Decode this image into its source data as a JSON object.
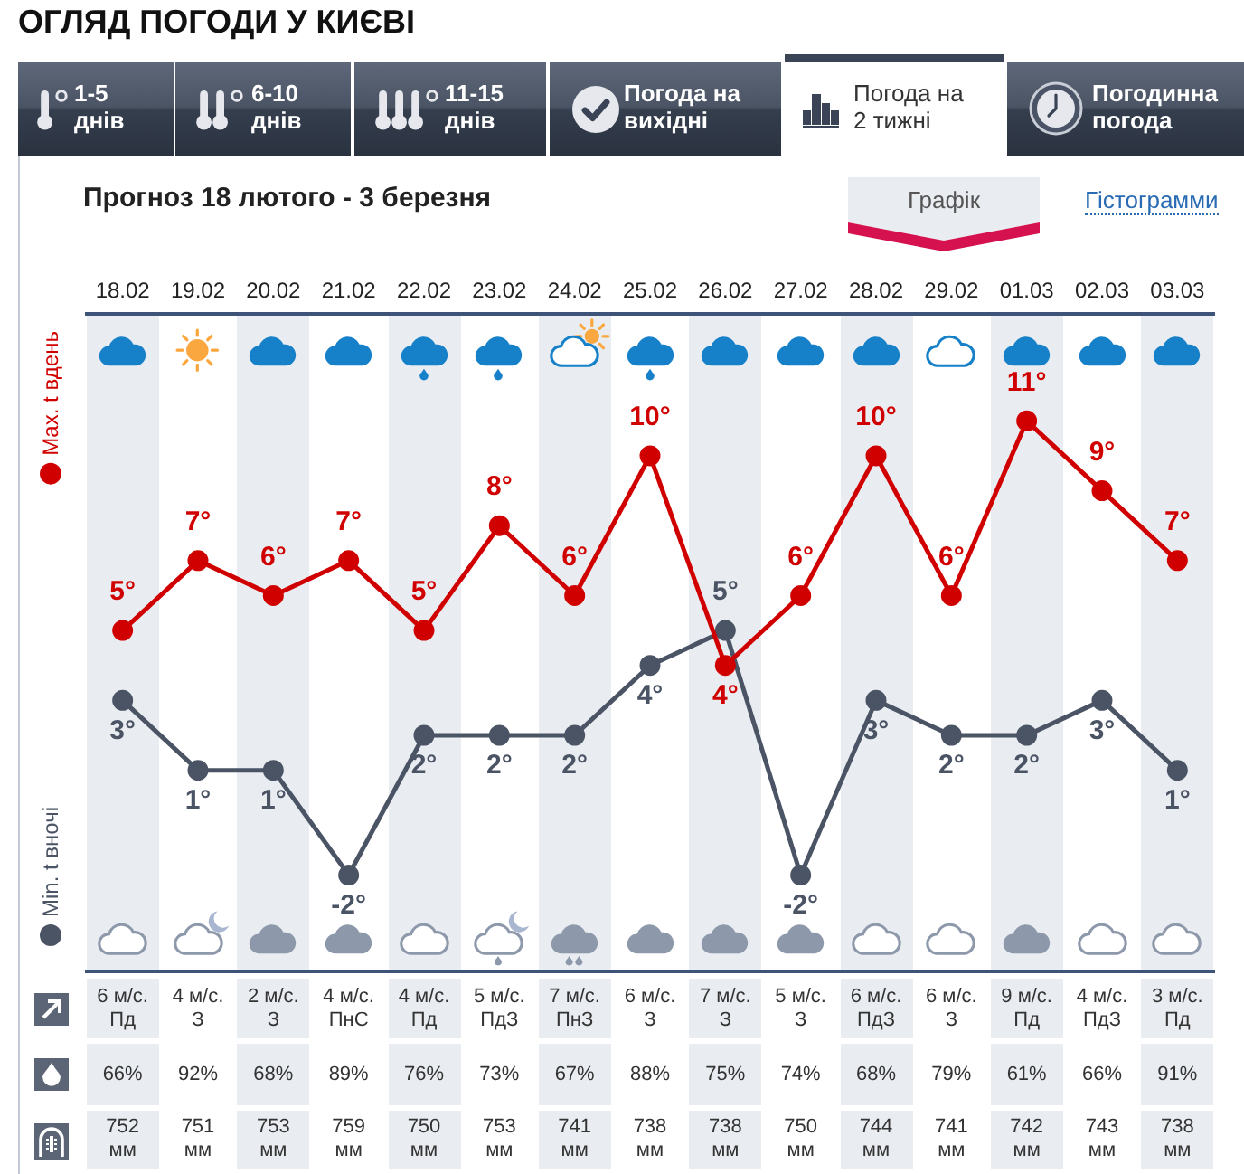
{
  "chart_data": {
    "type": "line",
    "title": "ОГЛЯД ПОГОДИ У КИЄВІ",
    "subtitle": "Прогноз 18 лютого - 3 березня",
    "categories": [
      "18.02",
      "19.02",
      "20.02",
      "21.02",
      "22.02",
      "23.02",
      "24.02",
      "25.02",
      "26.02",
      "27.02",
      "28.02",
      "29.02",
      "01.03",
      "02.03",
      "03.03"
    ],
    "series": [
      {
        "name": "Max. t вдень",
        "color": "#d10000",
        "values": [
          5,
          7,
          6,
          7,
          5,
          8,
          6,
          10,
          4,
          6,
          10,
          6,
          11,
          9,
          7
        ],
        "value_labels": [
          "5°",
          "7°",
          "6°",
          "7°",
          "5°",
          "8°",
          "6°",
          "10°",
          "4°",
          "6°",
          "10°",
          "6°",
          "11°",
          "9°",
          "7°"
        ]
      },
      {
        "name": "Min. t вночі",
        "color": "#4a5465",
        "values": [
          3,
          1,
          1,
          -2,
          2,
          2,
          2,
          4,
          5,
          -2,
          3,
          2,
          2,
          3,
          1
        ],
        "value_labels": [
          "3°",
          "1°",
          "1°",
          "-2°",
          "2°",
          "2°",
          "2°",
          "4°",
          "5°",
          "-2°",
          "3°",
          "2°",
          "2°",
          "3°",
          "1°"
        ]
      }
    ],
    "legend": "left",
    "tick_labels": "x",
    "marker": "circle",
    "line_style": "solid",
    "annotations": [
      "1-5\nднів",
      "6-10\nднів",
      "11-15\nднів",
      "Погода на\nвихідні",
      "Погода на\n2 тижні",
      "Погодинна\nпогода",
      "Графік",
      "Гістограмми",
      "6 м/с.\nПд",
      "4 м/с.\nЗ",
      "2 м/с.\nЗ",
      "4 м/с.\nПнС",
      "4 м/с.\nПд",
      "5 м/с.\nПдЗ",
      "7 м/с.\nПнЗ",
      "6 м/с.\nЗ",
      "7 м/с.\nЗ",
      "5 м/с.\nЗ",
      "6 м/с.\nПдЗ",
      "6 м/с.\nЗ",
      "9 м/с.\nПд",
      "4 м/с.\nПдЗ",
      "3 м/с.\nПд",
      "66%",
      "92%",
      "68%",
      "89%",
      "76%",
      "73%",
      "67%",
      "88%",
      "75%",
      "74%",
      "68%",
      "79%",
      "61%",
      "66%",
      "91%",
      "752\nмм",
      "751\nмм",
      "753\nмм",
      "759\nмм",
      "750\nмм",
      "753\nмм",
      "741\nмм",
      "738\nмм",
      "738\nмм",
      "750\nмм",
      "744\nмм",
      "741\nмм",
      "742\nмм",
      "743\nмм",
      "738\nмм"
    ]
  }
}
